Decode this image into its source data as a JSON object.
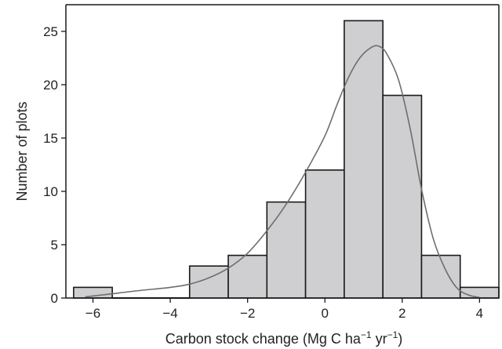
{
  "chart_data": {
    "type": "bar",
    "variant": "histogram",
    "title": "",
    "xlabel": {
      "prefix": "Carbon stock change (Mg C ha",
      "exp1": "−1",
      "middle": " yr",
      "exp2": "−1",
      "suffix": ")"
    },
    "ylabel": "Number of plots",
    "xlim": [
      -6.7,
      4.5
    ],
    "ylim": [
      0,
      27.5
    ],
    "xticks": [
      {
        "value": -6,
        "label": "−6"
      },
      {
        "value": -4,
        "label": "−4"
      },
      {
        "value": -2,
        "label": "−2"
      },
      {
        "value": 0,
        "label": "0"
      },
      {
        "value": 2,
        "label": "2"
      },
      {
        "value": 4,
        "label": "4"
      }
    ],
    "yticks": [
      {
        "value": 0,
        "label": "0"
      },
      {
        "value": 5,
        "label": "5"
      },
      {
        "value": 10,
        "label": "10"
      },
      {
        "value": 15,
        "label": "15"
      },
      {
        "value": 20,
        "label": "20"
      },
      {
        "value": 25,
        "label": "25"
      }
    ],
    "bins": [
      {
        "x0": -6.5,
        "x1": -5.5,
        "count": 1
      },
      {
        "x0": -5.5,
        "x1": -4.5,
        "count": 0
      },
      {
        "x0": -4.5,
        "x1": -3.5,
        "count": 0
      },
      {
        "x0": -3.5,
        "x1": -2.5,
        "count": 3
      },
      {
        "x0": -2.5,
        "x1": -1.5,
        "count": 4
      },
      {
        "x0": -1.5,
        "x1": -0.5,
        "count": 9
      },
      {
        "x0": -0.5,
        "x1": 0.5,
        "count": 12
      },
      {
        "x0": 0.5,
        "x1": 1.5,
        "count": 26
      },
      {
        "x0": 1.5,
        "x1": 2.5,
        "count": 19
      },
      {
        "x0": 2.5,
        "x1": 3.5,
        "count": 4
      },
      {
        "x0": 3.5,
        "x1": 4.5,
        "count": 1
      }
    ],
    "density_curve": {
      "x": [
        -6.2,
        -5.5,
        -4.8,
        -4.0,
        -3.5,
        -3.0,
        -2.5,
        -2.0,
        -1.5,
        -1.0,
        -0.5,
        0.0,
        0.3,
        0.6,
        0.9,
        1.2,
        1.4,
        1.6,
        1.9,
        2.2,
        2.5,
        2.8,
        3.1,
        3.4,
        3.7,
        4.0
      ],
      "y": [
        0.1,
        0.4,
        0.7,
        1.0,
        1.3,
        1.9,
        2.8,
        4.2,
        6.3,
        8.8,
        11.8,
        15.2,
        18.0,
        20.6,
        22.5,
        23.5,
        23.6,
        22.9,
        20.5,
        16.0,
        10.2,
        5.6,
        2.8,
        1.0,
        0.3,
        0.05
      ]
    },
    "colors": {
      "bar_fill": "#cfcfd1",
      "bar_stroke": "#1a1a1a",
      "curve": "#6e6e6e",
      "axis": "#1a1a1a"
    }
  }
}
